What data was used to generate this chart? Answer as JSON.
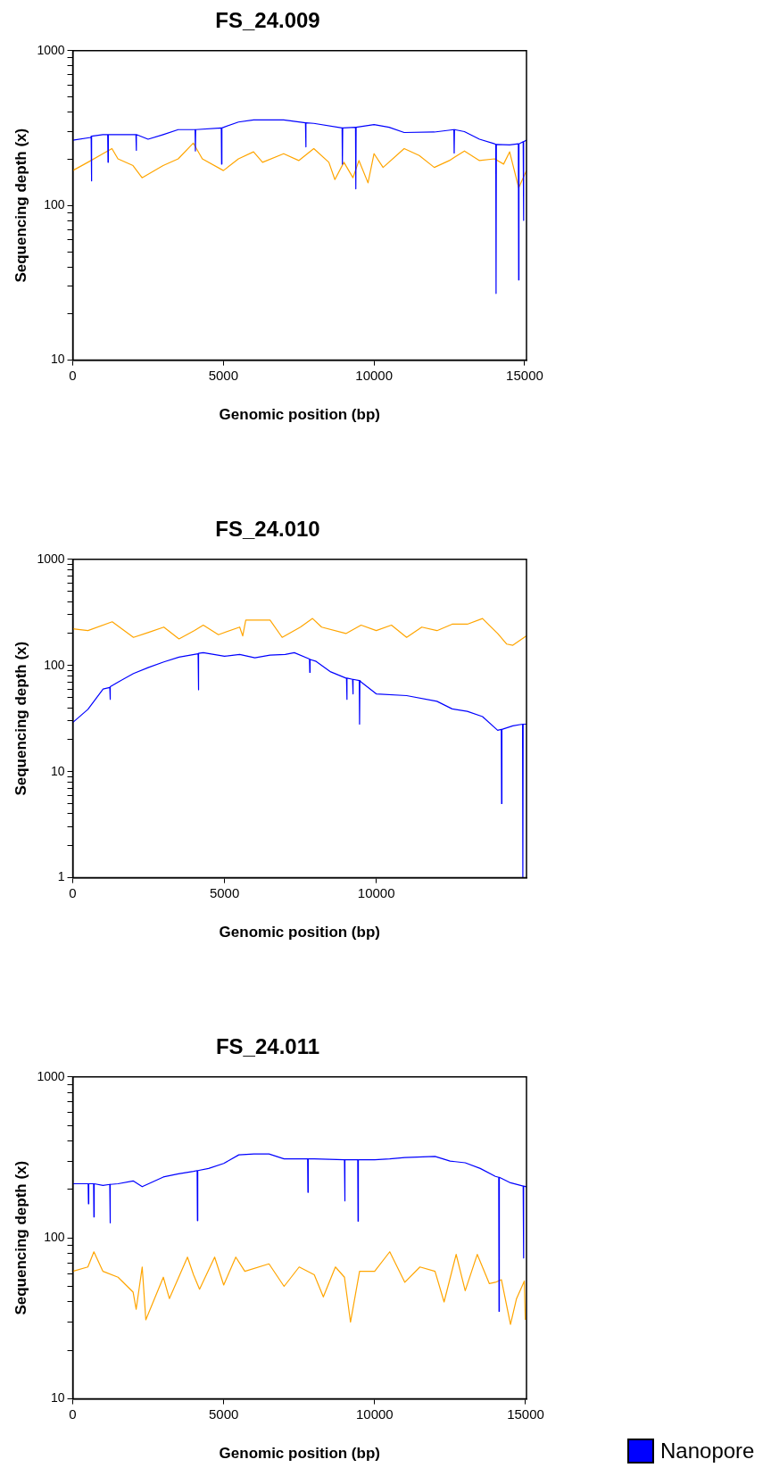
{
  "chart_data": [
    {
      "type": "line",
      "title": "FS_24.009",
      "xlabel": "Genomic position (bp)",
      "ylabel": "Sequencing depth (x)",
      "log": "y",
      "xlim": [
        0,
        15060
      ],
      "xticks": [
        0,
        5000,
        10000,
        15000
      ],
      "ylim": [
        10,
        1000
      ],
      "yticks": [
        10,
        {
          "value": 20,
          "label": null
        },
        {
          "value": 30,
          "label": null
        },
        {
          "value": 40,
          "label": null
        },
        {
          "value": 50,
          "label": null
        },
        {
          "value": 60,
          "label": null
        },
        {
          "value": 70,
          "label": null
        },
        {
          "value": 80,
          "label": null
        },
        {
          "value": 90,
          "label": null
        },
        100,
        {
          "value": 200,
          "label": null
        },
        {
          "value": 300,
          "label": null
        },
        {
          "value": 400,
          "label": null
        },
        {
          "value": 500,
          "label": null
        },
        {
          "value": 600,
          "label": null
        },
        {
          "value": 700,
          "label": null
        },
        {
          "value": 800,
          "label": null
        },
        {
          "value": 900,
          "label": null
        },
        1000
      ],
      "series": [
        {
          "color": "#0000ff",
          "x": [
            0,
            600,
            610,
            620,
            630,
            1000,
            1160,
            1170,
            1180,
            2000,
            2096,
            2106,
            2116,
            2500,
            3000,
            3500,
            4060,
            4070,
            4080,
            4930,
            4940,
            4950,
            5500,
            6000,
            7000,
            7724,
            7734,
            7744,
            8000,
            8940,
            8950,
            8960,
            9385,
            9395,
            9405,
            10000,
            10500,
            11000,
            12000,
            12650,
            12660,
            12670,
            13000,
            13500,
            14000,
            14040,
            14050,
            14060,
            14500,
            14790,
            14800,
            14810,
            14950,
            14960,
            14970,
            15060
          ],
          "values": [
            264,
            275,
            280,
            144,
            280,
            287,
            287,
            190,
            287,
            287,
            287,
            227,
            287,
            268,
            287,
            309,
            309,
            225,
            309,
            317,
            185,
            317,
            346,
            357,
            357,
            342,
            239,
            342,
            339,
            317,
            185,
            317,
            320,
            128,
            320,
            333,
            320,
            296,
            298,
            309,
            218,
            309,
            300,
            268,
            250,
            248,
            27,
            248,
            246,
            250,
            33,
            250,
            258,
            80,
            258,
            264
          ]
        },
        {
          "color": "#ffa500",
          "x": [
            0,
            500,
            1000,
            1300,
            1500,
            2000,
            2300,
            3000,
            3500,
            4000,
            4300,
            5000,
            5500,
            6000,
            6300,
            7000,
            7500,
            8000,
            8500,
            8700,
            9000,
            9300,
            9500,
            9800,
            10000,
            10300,
            11000,
            11500,
            12000,
            12500,
            13000,
            13500,
            14000,
            14300,
            14500,
            14800,
            15060
          ],
          "values": [
            168,
            190,
            216,
            233,
            200,
            181,
            151,
            181,
            200,
            253,
            200,
            168,
            200,
            222,
            190,
            216,
            195,
            233,
            190,
            147,
            190,
            151,
            195,
            140,
            216,
            176,
            233,
            210,
            176,
            195,
            225,
            195,
            200,
            185,
            222,
            130,
            168
          ]
        }
      ]
    },
    {
      "type": "line",
      "title": "FS_24.010",
      "xlabel": "Genomic position (bp)",
      "ylabel": "Sequencing depth (x)",
      "log": "y",
      "xlim": [
        0,
        14950
      ],
      "xticks": [
        0,
        5000,
        10000
      ],
      "ylim": [
        1,
        1000
      ],
      "yticks": [
        1,
        {
          "value": 2,
          "label": null
        },
        {
          "value": 3,
          "label": null
        },
        {
          "value": 4,
          "label": null
        },
        {
          "value": 5,
          "label": null
        },
        {
          "value": 6,
          "label": null
        },
        {
          "value": 7,
          "label": null
        },
        {
          "value": 8,
          "label": null
        },
        {
          "value": 9,
          "label": null
        },
        10,
        {
          "value": 20,
          "label": null
        },
        {
          "value": 30,
          "label": null
        },
        {
          "value": 40,
          "label": null
        },
        {
          "value": 50,
          "label": null
        },
        {
          "value": 60,
          "label": null
        },
        {
          "value": 70,
          "label": null
        },
        {
          "value": 80,
          "label": null
        },
        {
          "value": 90,
          "label": null
        },
        100,
        {
          "value": 200,
          "label": null
        },
        {
          "value": 300,
          "label": null
        },
        {
          "value": 400,
          "label": null
        },
        {
          "value": 500,
          "label": null
        },
        {
          "value": 600,
          "label": null
        },
        {
          "value": 700,
          "label": null
        },
        {
          "value": 800,
          "label": null
        },
        {
          "value": 900,
          "label": null
        },
        1000
      ],
      "series": [
        {
          "color": "#0000ff",
          "x": [
            0,
            500,
            1000,
            1220,
            1230,
            1240,
            1500,
            2000,
            2500,
            3000,
            3500,
            4000,
            4130,
            4140,
            4150,
            4300,
            5000,
            5500,
            6000,
            6500,
            7000,
            7300,
            7800,
            7810,
            7820,
            8000,
            8500,
            9000,
            9020,
            9030,
            9040,
            9220,
            9230,
            9240,
            9440,
            9450,
            9460,
            9500,
            10000,
            11000,
            12000,
            12500,
            13000,
            13500,
            14000,
            14120,
            14130,
            14140,
            14500,
            14820,
            14830,
            14840,
            14950
          ],
          "values": [
            29,
            38.6,
            60,
            62,
            48,
            63,
            70,
            84,
            96,
            108,
            120,
            127,
            129,
            59,
            130,
            132,
            122,
            127,
            118,
            125,
            127,
            132,
            115,
            86,
            114,
            110,
            87,
            76,
            76,
            48,
            76,
            74,
            54,
            74,
            72,
            28,
            72,
            70,
            54,
            52,
            46,
            39,
            37,
            33,
            24.5,
            25,
            5,
            25,
            27,
            28,
            1,
            28,
            28
          ]
        },
        {
          "color": "#ffa500",
          "x": [
            0,
            500,
            1300,
            2000,
            2500,
            3000,
            3500,
            4000,
            4300,
            4800,
            5500,
            5600,
            5700,
            6500,
            6900,
            7500,
            7900,
            8200,
            9000,
            9500,
            10000,
            10500,
            11000,
            11500,
            12000,
            12500,
            13000,
            13500,
            14000,
            14300,
            14500,
            14950
          ],
          "values": [
            222,
            213,
            258,
            184,
            205,
            230,
            178,
            213,
            240,
            195,
            230,
            190,
            268,
            268,
            184,
            230,
            277,
            230,
            200,
            240,
            213,
            240,
            184,
            230,
            213,
            245,
            245,
            277,
            200,
            159,
            155,
            190
          ]
        }
      ]
    },
    {
      "type": "line",
      "title": "FS_24.011",
      "xlabel": "Genomic position (bp)",
      "ylabel": "Sequencing depth (x)",
      "log": "y",
      "legend": "right",
      "xlim": [
        0,
        15030
      ],
      "xticks": [
        0,
        5000,
        10000,
        15000
      ],
      "ylim": [
        10,
        1000
      ],
      "yticks": [
        10,
        {
          "value": 20,
          "label": null
        },
        {
          "value": 30,
          "label": null
        },
        {
          "value": 40,
          "label": null
        },
        {
          "value": 50,
          "label": null
        },
        {
          "value": 60,
          "label": null
        },
        {
          "value": 70,
          "label": null
        },
        {
          "value": 80,
          "label": null
        },
        {
          "value": 90,
          "label": null
        },
        100,
        {
          "value": 200,
          "label": null
        },
        {
          "value": 300,
          "label": null
        },
        {
          "value": 400,
          "label": null
        },
        {
          "value": 500,
          "label": null
        },
        {
          "value": 600,
          "label": null
        },
        {
          "value": 700,
          "label": null
        },
        {
          "value": 800,
          "label": null
        },
        {
          "value": 900,
          "label": null
        },
        1000
      ],
      "series": [
        {
          "name": "Nanopore",
          "color": "#0000ff",
          "x": [
            0,
            510,
            520,
            530,
            690,
            700,
            710,
            1000,
            1226,
            1236,
            1246,
            1500,
            2000,
            2300,
            3000,
            3500,
            4000,
            4120,
            4130,
            4140,
            4500,
            5000,
            5500,
            6000,
            6500,
            7000,
            7780,
            7790,
            7800,
            8000,
            9000,
            9010,
            9020,
            9440,
            9450,
            9460,
            10000,
            10500,
            11000,
            12000,
            12500,
            13000,
            13500,
            14000,
            14110,
            14120,
            14130,
            14500,
            14920,
            14930,
            14940,
            15030
          ],
          "values": [
            217,
            217,
            163,
            217,
            217,
            135,
            217,
            212,
            215,
            124,
            215,
            217,
            226,
            208,
            239,
            250,
            259,
            262,
            128,
            262,
            270,
            290,
            328,
            332,
            332,
            310,
            310,
            192,
            310,
            310,
            306,
            170,
            306,
            306,
            127,
            306,
            306,
            310,
            316,
            321,
            300,
            293,
            270,
            241,
            238,
            35,
            238,
            220,
            210,
            75,
            210,
            208
          ]
        },
        {
          "color": "#ffa500",
          "x": [
            0,
            500,
            700,
            1000,
            1500,
            2000,
            2100,
            2300,
            2420,
            3000,
            3200,
            3800,
            4000,
            4200,
            4700,
            5000,
            5400,
            5700,
            6500,
            7000,
            7500,
            8000,
            8300,
            8700,
            9000,
            9200,
            9500,
            10000,
            10500,
            11000,
            11500,
            12000,
            12300,
            12700,
            13000,
            13400,
            13800,
            14000,
            14200,
            14500,
            14700,
            14960,
            14990
          ],
          "values": [
            62,
            66,
            82,
            62,
            57,
            46,
            36,
            66,
            31,
            57,
            42,
            76,
            59,
            48,
            76,
            51,
            76,
            62,
            69,
            50,
            66,
            59,
            43,
            66,
            57,
            30,
            62,
            62,
            82,
            53,
            66,
            62,
            40,
            79,
            47,
            79,
            52,
            53,
            55,
            29,
            42,
            54,
            31
          ]
        }
      ]
    }
  ]
}
